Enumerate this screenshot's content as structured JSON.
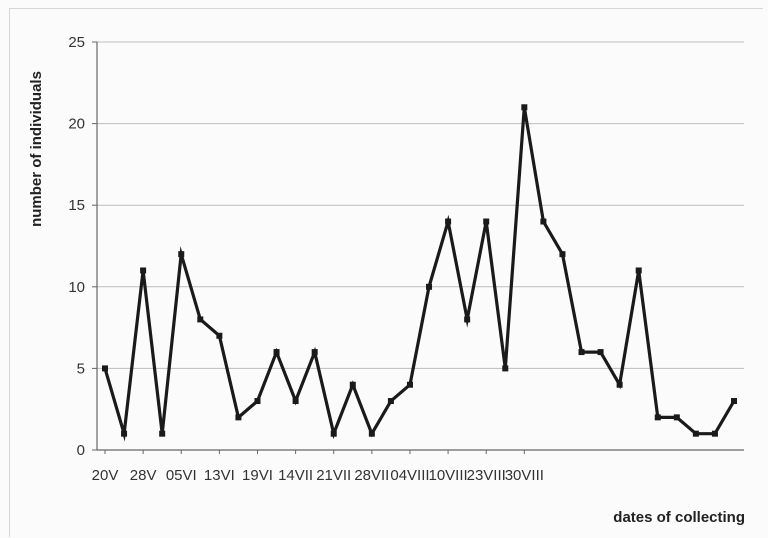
{
  "chart_data": {
    "type": "line",
    "title": "",
    "xlabel": "dates of collecting",
    "ylabel": "number of individuals",
    "ylim": [
      0,
      25
    ],
    "yticks": [
      0,
      5,
      10,
      15,
      20,
      25
    ],
    "grid": true,
    "legend": "none",
    "line_color": "#1a1a1a",
    "tick_labels": [
      "20V",
      "28V",
      "05VI",
      "13VI",
      "19VI",
      "14VII",
      "21VII",
      "28VII",
      "04VIII",
      "10VIII",
      "23VIII",
      "30VIII"
    ],
    "tick_label_index": [
      0,
      2,
      4,
      6,
      8,
      10,
      12,
      14,
      16,
      18,
      20,
      22
    ],
    "series": [
      {
        "values": [
          5,
          1,
          11,
          1,
          12,
          8,
          7,
          2,
          3,
          6,
          3,
          6,
          1,
          4,
          1,
          3,
          4,
          10,
          14,
          8,
          14,
          5,
          21,
          14,
          12,
          6,
          6,
          4,
          11,
          2,
          2,
          1,
          1,
          3
        ]
      }
    ]
  }
}
